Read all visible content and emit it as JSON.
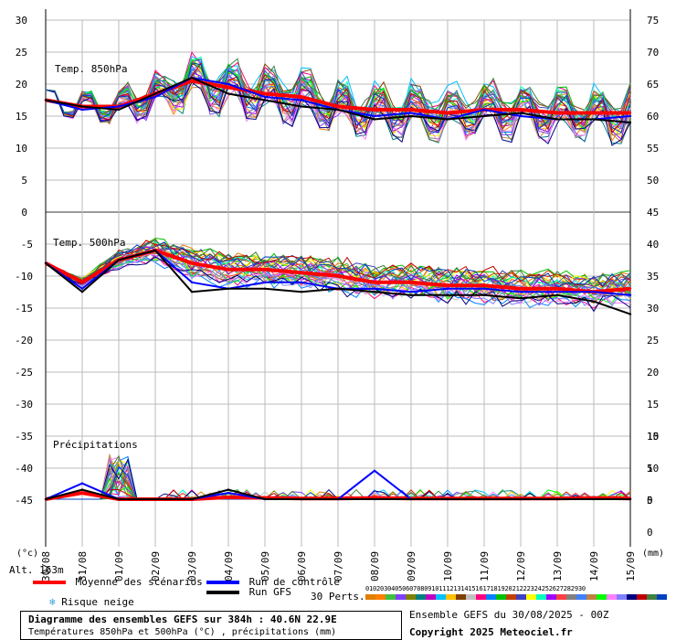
{
  "x_dates": [
    "30/08",
    "31/08",
    "01/09",
    "02/09",
    "03/09",
    "04/09",
    "05/09",
    "06/09",
    "07/09",
    "08/09",
    "09/09",
    "10/09",
    "11/09",
    "12/09",
    "13/09",
    "14/09",
    "15/09"
  ],
  "legend": {
    "mean": "Moyenne des scénarios",
    "control": "Run de contrôle",
    "gfs": "Run GFS",
    "snow": "Risque neige",
    "perts": "30 Perts."
  },
  "alt": "Alt. 163m",
  "units": {
    "left": "(°c)",
    "right": "(mm)"
  },
  "footer": {
    "title": "Diagramme des ensembles GEFS sur 384h : 40.6N 22.9E",
    "subtitle": "Températures 850hPa et 500hPa (°C) , précipitations (mm)",
    "ensemble": "Ensemble GEFS du 30/08/2025 - 00Z",
    "copyright": "Copyright 2025 Meteociel.fr"
  },
  "pert_numbers": [
    "01",
    "02",
    "03",
    "04",
    "05",
    "06",
    "07",
    "08",
    "09",
    "10",
    "11",
    "12",
    "13",
    "14",
    "15",
    "16",
    "17",
    "18",
    "19",
    "20",
    "21",
    "22",
    "23",
    "24",
    "25",
    "26",
    "27",
    "28",
    "29",
    "30"
  ],
  "colors": {
    "mean": "#ff0000",
    "control": "#0000ff",
    "gfs": "#000000",
    "grid": "#bbbbbb",
    "pert_strip": [
      "#e08000",
      "#ff8000",
      "#40c040",
      "#8040ff",
      "#808000",
      "#008080",
      "#c000c0",
      "#00c0ff",
      "#ffc000",
      "#804000",
      "#c0c0c0",
      "#ff0080",
      "#0080ff",
      "#00c000",
      "#c04000",
      "#4040c0",
      "#ffff00",
      "#00ffc0",
      "#a000ff",
      "#ff4040",
      "#808080",
      "#4080ff",
      "#c08040",
      "#00ff00",
      "#ff80ff",
      "#8080ff",
      "#000080",
      "#c00000",
      "#408040",
      "#0040c0"
    ]
  },
  "chart_data": [
    {
      "type": "line",
      "title": "Temp. 850hPa",
      "y_ticks_left": [
        "30",
        "25",
        "20",
        "15",
        "10",
        "5",
        "0"
      ],
      "y_ticks_right": [
        "75",
        "70",
        "65",
        "60",
        "55",
        "50",
        "45"
      ],
      "ylim": [
        0,
        30
      ],
      "x": [
        "30/08",
        "31/08",
        "01/09",
        "02/09",
        "03/09",
        "04/09",
        "05/09",
        "06/09",
        "07/09",
        "08/09",
        "09/09",
        "10/09",
        "11/09",
        "12/09",
        "13/09",
        "14/09",
        "15/09"
      ],
      "series": [
        {
          "name": "Moyenne des scénarios",
          "values": [
            17.5,
            16.5,
            16.5,
            18.5,
            20.5,
            19.5,
            18.5,
            18,
            16.5,
            16,
            16,
            15.5,
            16,
            16,
            15.5,
            15.5,
            15.5
          ]
        },
        {
          "name": "Run de contrôle",
          "values": [
            17.5,
            16,
            16.5,
            18,
            21,
            20,
            18,
            17.5,
            16,
            15,
            15.5,
            14.5,
            16,
            15,
            14.5,
            14.5,
            15
          ]
        },
        {
          "name": "Run GFS",
          "values": [
            17.5,
            16.5,
            16,
            18.5,
            21,
            18.5,
            17.5,
            16.5,
            16,
            14.5,
            15,
            14.5,
            15,
            15.5,
            14.5,
            14.5,
            14
          ]
        }
      ]
    },
    {
      "type": "line",
      "title": "Temp. 500hPa",
      "y_ticks_left": [
        "-5",
        "-10",
        "-15",
        "-20",
        "-25",
        "-30",
        "-35",
        "-40",
        "-45"
      ],
      "y_ticks_right": [
        "40",
        "35",
        "30",
        "25",
        "20",
        "15",
        "10",
        "5",
        "0"
      ],
      "ylim": [
        -45,
        0
      ],
      "x": [
        "30/08",
        "31/08",
        "01/09",
        "02/09",
        "03/09",
        "04/09",
        "05/09",
        "06/09",
        "07/09",
        "08/09",
        "09/09",
        "10/09",
        "11/09",
        "12/09",
        "13/09",
        "14/09",
        "15/09"
      ],
      "series": [
        {
          "name": "Moyenne des scénarios",
          "values": [
            -8,
            -11,
            -7.5,
            -6,
            -8,
            -9,
            -9,
            -9.5,
            -10,
            -11,
            -11,
            -11.5,
            -11.5,
            -12,
            -12,
            -12.5,
            -12
          ]
        },
        {
          "name": "Run de contrôle",
          "values": [
            -8,
            -12,
            -7.5,
            -6,
            -11,
            -12,
            -11,
            -11,
            -12,
            -12,
            -12.5,
            -12,
            -12,
            -12.5,
            -12.5,
            -12.5,
            -13
          ]
        },
        {
          "name": "Run GFS",
          "values": [
            -8,
            -12.5,
            -7.5,
            -6,
            -12.5,
            -12,
            -12,
            -12.5,
            -12,
            -12.5,
            -13,
            -13,
            -13,
            -13.5,
            -13,
            -14,
            -16
          ]
        }
      ]
    },
    {
      "type": "line",
      "title": "Précipitations",
      "y_ticks_right": [
        "15",
        "10",
        "5",
        "0"
      ],
      "ylim": [
        0,
        15
      ],
      "x": [
        "30/08",
        "31/08",
        "01/09",
        "02/09",
        "03/09",
        "04/09",
        "05/09",
        "06/09",
        "07/09",
        "08/09",
        "09/09",
        "10/09",
        "11/09",
        "12/09",
        "13/09",
        "14/09",
        "15/09"
      ],
      "series": [
        {
          "name": "Moyenne des scénarios",
          "values": [
            0,
            1,
            0,
            0,
            0,
            0.3,
            0.2,
            0.1,
            0.1,
            0.2,
            0.1,
            0.1,
            0.1,
            0.1,
            0.1,
            0.2,
            0.1
          ]
        },
        {
          "name": "Run de contrôle",
          "values": [
            0,
            2.5,
            0,
            0,
            0,
            1,
            0,
            0,
            0,
            4.5,
            0,
            0,
            0,
            0,
            0,
            0,
            0
          ]
        },
        {
          "name": "Run GFS",
          "values": [
            0,
            1.5,
            0,
            0,
            0,
            1.5,
            0,
            0,
            0,
            0,
            0,
            0,
            0,
            0,
            0,
            0,
            0
          ]
        }
      ]
    }
  ]
}
